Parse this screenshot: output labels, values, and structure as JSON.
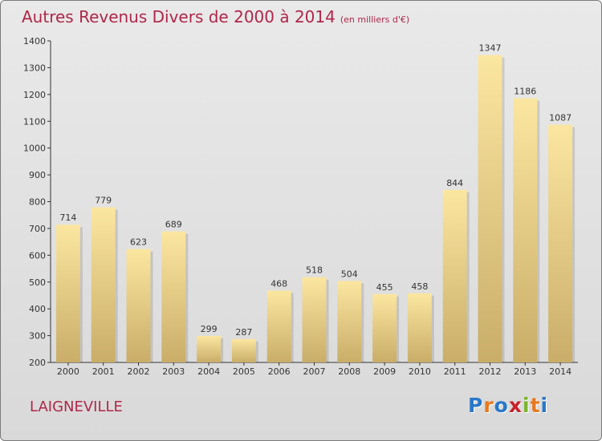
{
  "header": {
    "title": "Autres Revenus Divers de 2000 à 2014",
    "subtitle": "(en milliers d'€)"
  },
  "footer": {
    "commune": "LAIGNEVILLE",
    "logo_letters": [
      {
        "char": "P",
        "color": "#2a77c9"
      },
      {
        "char": "r",
        "color": "#e8781e"
      },
      {
        "char": "o",
        "color": "#2a77c9"
      },
      {
        "char": "x",
        "color": "#c9212a"
      },
      {
        "char": "i",
        "color": "#7ab528"
      },
      {
        "char": "t",
        "color": "#e8781e"
      },
      {
        "char": "i",
        "color": "#2a77c9"
      }
    ]
  },
  "chart_data": {
    "type": "bar",
    "title": "Autres Revenus Divers de 2000 à 2014",
    "subtitle": "(en milliers d'€)",
    "categories": [
      "2000",
      "2001",
      "2002",
      "2003",
      "2004",
      "2005",
      "2006",
      "2007",
      "2008",
      "2009",
      "2010",
      "2011",
      "2012",
      "2013",
      "2014"
    ],
    "values": [
      714,
      779,
      623,
      689,
      299,
      287,
      468,
      518,
      504,
      455,
      458,
      844,
      1347,
      1186,
      1087
    ],
    "ylim": [
      200,
      1400
    ],
    "yticks": [
      200,
      300,
      400,
      500,
      600,
      700,
      800,
      900,
      1000,
      1100,
      1200,
      1300,
      1400
    ],
    "grid": false,
    "bar_color_light": "#fbe6a0",
    "bar_color_dark": "#c9ad68"
  }
}
